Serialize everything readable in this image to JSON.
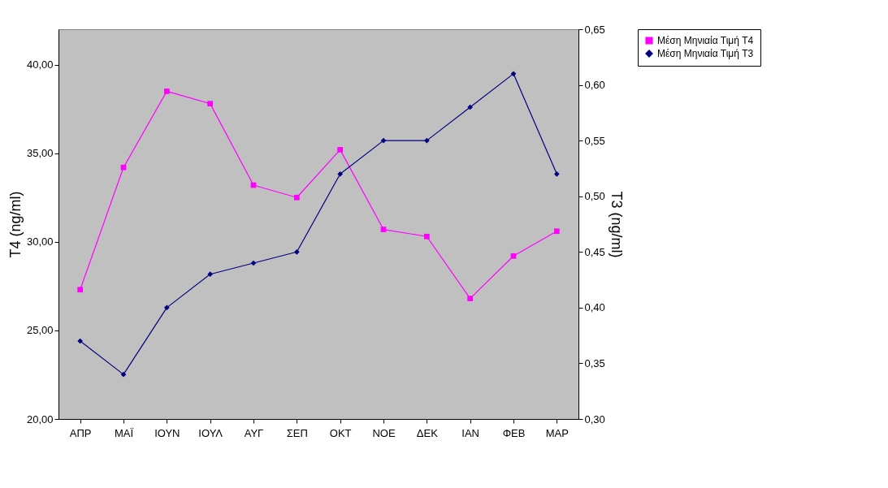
{
  "chart_data": {
    "type": "line",
    "categories": [
      "ΑΠΡ",
      "ΜΑΪ",
      "ΙΟΥΝ",
      "ΙΟΥΛ",
      "ΑΥΓ",
      "ΣΕΠ",
      "ΟΚΤ",
      "ΝΟΕ",
      "ΔΕΚ",
      "ΙΑΝ",
      "ΦΕΒ",
      "ΜΑΡ"
    ],
    "ylabel": "T4 (ng/ml)",
    "y2label": "T3 (ng/ml)",
    "ylim": [
      20,
      42
    ],
    "yticks": [
      {
        "value": 20,
        "label": "20,00"
      },
      {
        "value": 25,
        "label": "25,00"
      },
      {
        "value": 30,
        "label": "30,00"
      },
      {
        "value": 35,
        "label": "35,00"
      },
      {
        "value": 40,
        "label": "40,00"
      }
    ],
    "y2lim": [
      0.3,
      0.65
    ],
    "y2ticks": [
      {
        "value": 0.3,
        "label": "0,30"
      },
      {
        "value": 0.35,
        "label": "0,35"
      },
      {
        "value": 0.4,
        "label": "0,40"
      },
      {
        "value": 0.45,
        "label": "0,45"
      },
      {
        "value": 0.5,
        "label": "0,50"
      },
      {
        "value": 0.55,
        "label": "0,55"
      },
      {
        "value": 0.6,
        "label": "0,60"
      },
      {
        "value": 0.65,
        "label": "0,65"
      }
    ],
    "series": [
      {
        "name": "Μέση Μηνιαία Τιμή T4",
        "color": "#ff00ff",
        "marker": "square",
        "values": [
          27.3,
          34.2,
          38.5,
          37.8,
          33.2,
          32.5,
          35.2,
          30.7,
          30.3,
          26.8,
          29.2,
          30.6
        ]
      },
      {
        "name": "Μέση Μηνιαία Τιμή T3",
        "color": "#000080",
        "marker": "diamond",
        "axis": "y2",
        "values": [
          0.37,
          0.34,
          0.4,
          0.43,
          0.44,
          0.45,
          0.52,
          0.55,
          0.55,
          0.58,
          0.61,
          0.52
        ]
      }
    ],
    "grid": false,
    "legend": "right"
  }
}
